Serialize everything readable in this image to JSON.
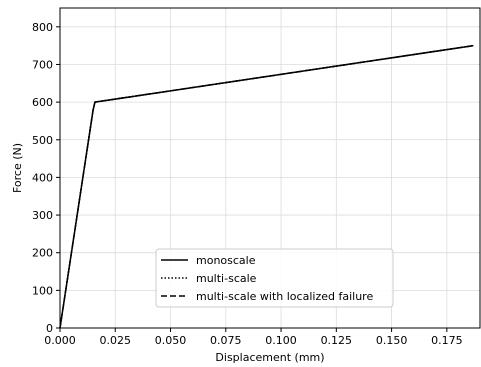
{
  "chart_data": {
    "type": "line",
    "title": "",
    "xlabel": "Displacement (mm)",
    "ylabel": "Force (N)",
    "xlim": [
      0,
      0.19
    ],
    "ylim": [
      0,
      850
    ],
    "x_ticks": [
      0,
      0.025,
      0.05,
      0.075,
      0.1,
      0.125,
      0.15,
      0.175
    ],
    "x_tick_labels": [
      "0.000",
      "0.025",
      "0.050",
      "0.075",
      "0.100",
      "0.125",
      "0.150",
      "0.175"
    ],
    "y_ticks": [
      0,
      100,
      200,
      300,
      400,
      500,
      600,
      700,
      800
    ],
    "y_tick_labels": [
      "0",
      "100",
      "200",
      "300",
      "400",
      "500",
      "600",
      "700",
      "800"
    ],
    "grid": true,
    "legend_position": "lower-center",
    "series": [
      {
        "name": "monoscale",
        "dash": "solid",
        "color": "#000000",
        "x": [
          0,
          0.015,
          0.0158,
          0.187
        ],
        "y": [
          0,
          580,
          600,
          750
        ]
      },
      {
        "name": "multi-scale",
        "dash": "dotted",
        "color": "#000000",
        "x": [
          0,
          0.015,
          0.0158,
          0.187
        ],
        "y": [
          0,
          580,
          600,
          750
        ]
      },
      {
        "name": "multi-scale with localized failure",
        "dash": "dashed",
        "color": "#000000",
        "x": [
          0,
          0.015,
          0.0158,
          0.187
        ],
        "y": [
          0,
          580,
          600,
          750
        ]
      }
    ]
  }
}
